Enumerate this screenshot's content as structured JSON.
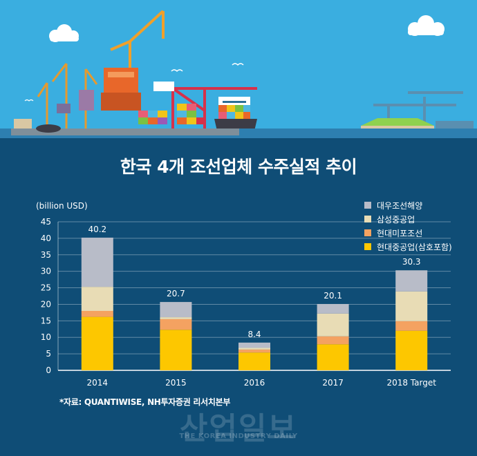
{
  "header": {
    "title": "한국 4개 조선업체 수주실적 추이"
  },
  "source": "*자료: QUANTIWISE, NH투자증권 리서치본부",
  "watermark": {
    "main": "산업일보",
    "sub": "THE KOREA INDUSTRY DAILY"
  },
  "chart_data": {
    "type": "bar",
    "stacked": true,
    "categories": [
      "2014",
      "2015",
      "2016",
      "2017",
      "2018 Target"
    ],
    "ylabel": "(billion USD)",
    "ylim": [
      0,
      45
    ],
    "yticks": [
      0,
      5,
      10,
      15,
      20,
      25,
      30,
      35,
      40,
      45
    ],
    "grid": true,
    "legend_position": "top-right",
    "totals": [
      "40.2",
      "20.7",
      "8.4",
      "20.1",
      "30.3"
    ],
    "series": [
      {
        "name": "현대중공업(삼호포함)",
        "color": "#fdc700",
        "values": [
          16.2,
          12.3,
          5.4,
          7.9,
          12.0
        ]
      },
      {
        "name": "현대미포조선",
        "color": "#f4a261",
        "values": [
          1.8,
          3.2,
          0.9,
          2.4,
          2.9
        ]
      },
      {
        "name": "삼성중공업",
        "color": "#e8dcb5",
        "values": [
          7.3,
          0.6,
          0.5,
          6.9,
          9.0
        ]
      },
      {
        "name": "대우조선해양",
        "color": "#b8bcc8",
        "values": [
          14.9,
          4.6,
          1.6,
          2.9,
          6.4
        ]
      }
    ]
  }
}
